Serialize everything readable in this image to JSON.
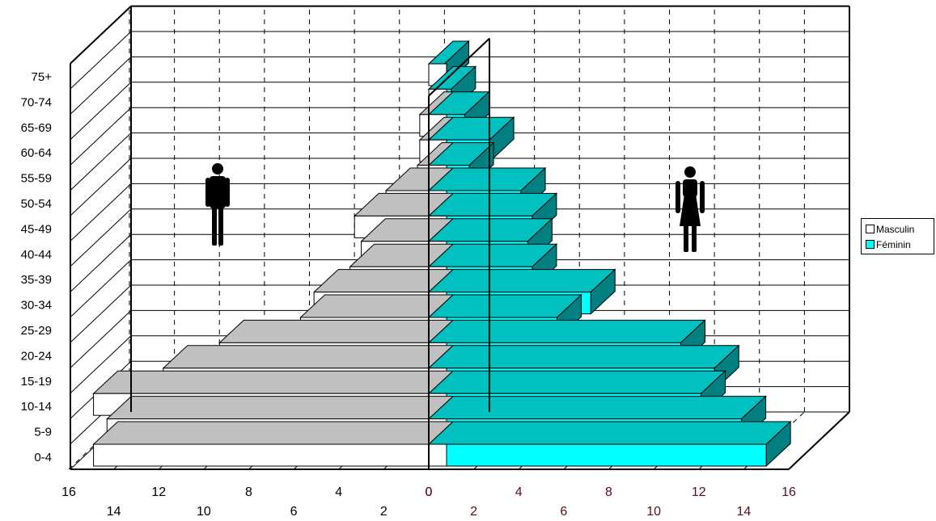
{
  "chart_data": {
    "type": "bar",
    "orientation": "horizontal",
    "style": "3d-population-pyramid",
    "categories": [
      "0-4",
      "5-9",
      "10-14",
      "15-19",
      "20-24",
      "25-29",
      "30-34",
      "35-39",
      "40-44",
      "45-49",
      "50-54",
      "55-59",
      "60-64",
      "65-69",
      "70-74",
      "75+"
    ],
    "series": [
      {
        "name": "Masculin",
        "color": "#ffffff",
        "values": [
          14.9,
          14.3,
          14.9,
          11.8,
          9.3,
          5.7,
          5.1,
          3.5,
          3.0,
          3.3,
          1.9,
          0.5,
          0.4,
          0.4,
          0.0,
          0.0
        ]
      },
      {
        "name": "Féminin",
        "color": "#00ffff",
        "values": [
          15.0,
          13.9,
          12.1,
          12.7,
          11.2,
          5.7,
          7.2,
          4.6,
          4.4,
          4.6,
          4.1,
          1.8,
          2.7,
          1.6,
          1.0,
          0.7
        ]
      }
    ],
    "xlim": [
      0,
      16
    ],
    "x_ticks_outer": [
      "16",
      "12",
      "8",
      "4",
      "0"
    ],
    "x_ticks_inner": [
      "14",
      "10",
      "6",
      "2"
    ],
    "x_ticks_right_outer": [
      "0",
      "4",
      "8",
      "12",
      "16"
    ],
    "x_ticks_right_inner": [
      "2",
      "6",
      "10",
      "14"
    ],
    "legend": "right",
    "grid": true,
    "icons": [
      "male-figure-icon",
      "female-figure-icon"
    ]
  }
}
